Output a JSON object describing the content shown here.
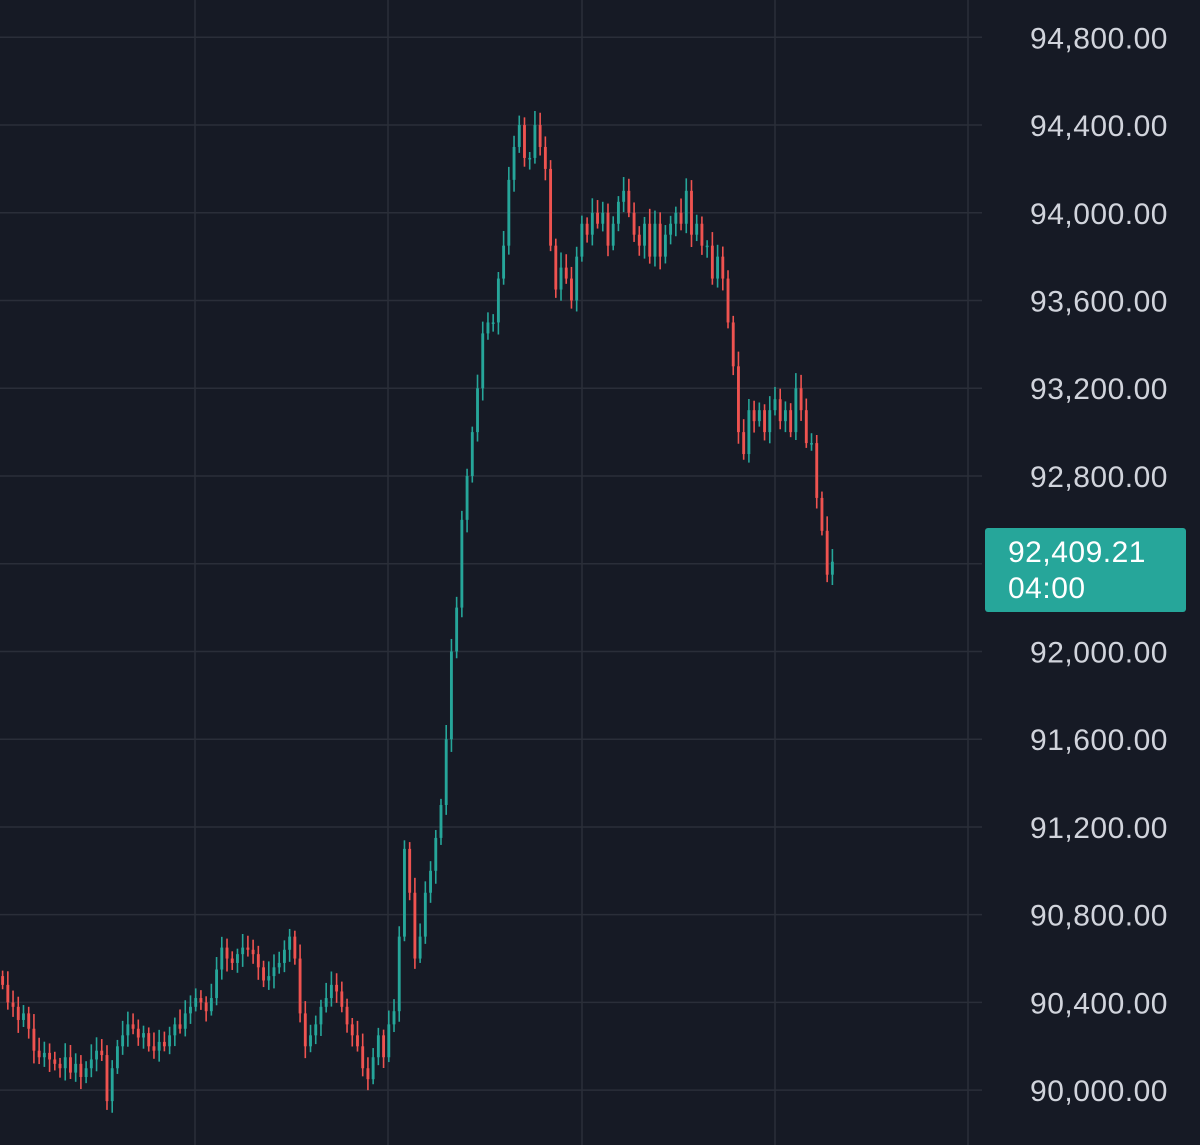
{
  "colors": {
    "background": "#161a25",
    "grid": "#2a2e39",
    "axis_text": "#d1d4dc",
    "up": "#26a69a",
    "down": "#ef5350",
    "last_price_tag": "#26a69a"
  },
  "chart_data": {
    "type": "candlestick",
    "title": "",
    "xlabel": "",
    "ylabel": "",
    "ylim": [
      89750,
      94970
    ],
    "y_ticks": [
      94800,
      94400,
      94000,
      93600,
      93200,
      92800,
      92400,
      92000,
      91600,
      91200,
      90800,
      90400,
      90000
    ],
    "y_tick_labels": [
      "94,800.00",
      "94,400.00",
      "94,000.00",
      "93,600.00",
      "93,200.00",
      "92,800.00",
      "",
      "92,000.00",
      "91,600.00",
      "91,200.00",
      "90,800.00",
      "90,400.00",
      "90,000.00"
    ],
    "grid": true,
    "last_price": {
      "value": 92409.21,
      "label": "92,409.21",
      "countdown": "04:00"
    },
    "candles_note": "approximate OHLC closes traced from the chart, oldest to newest",
    "closes": [
      90480,
      90400,
      90380,
      90320,
      90350,
      90280,
      90180,
      90150,
      90170,
      90140,
      90120,
      90100,
      90150,
      90080,
      90120,
      90060,
      90100,
      90140,
      90180,
      90160,
      89950,
      90100,
      90200,
      90250,
      90300,
      90280,
      90240,
      90260,
      90200,
      90180,
      90220,
      90200,
      90250,
      90300,
      90280,
      90350,
      90380,
      90420,
      90400,
      90360,
      90420,
      90550,
      90650,
      90600,
      90580,
      90620,
      90650,
      90640,
      90620,
      90560,
      90500,
      90520,
      90560,
      90580,
      90640,
      90700,
      90600,
      90350,
      90200,
      90250,
      90300,
      90380,
      90420,
      90480,
      90450,
      90380,
      90300,
      90250,
      90200,
      90100,
      90050,
      90150,
      90250,
      90150,
      90300,
      90360,
      90700,
      91100,
      90900,
      90600,
      90700,
      90900,
      91000,
      91150,
      91300,
      91600,
      92000,
      92200,
      92600,
      92800,
      93000,
      93200,
      93450,
      93500,
      93500,
      93700,
      93850,
      94150,
      94300,
      94400,
      94250,
      94250,
      94400,
      94300,
      94200,
      93850,
      93650,
      93750,
      93700,
      93600,
      93800,
      93950,
      93900,
      94000,
      93950,
      94000,
      93850,
      93950,
      94050,
      94100,
      94000,
      93900,
      93850,
      93950,
      93800,
      93950,
      93800,
      93900,
      93950,
      94000,
      93950,
      94100,
      93900,
      93950,
      93850,
      93850,
      93700,
      93800,
      93700,
      93500,
      93300,
      93000,
      92900,
      93100,
      93050,
      93100,
      93000,
      93100,
      93150,
      93050,
      93100,
      93000,
      93200,
      93100,
      92950,
      92950,
      92700,
      92550,
      92350,
      92409
    ]
  }
}
